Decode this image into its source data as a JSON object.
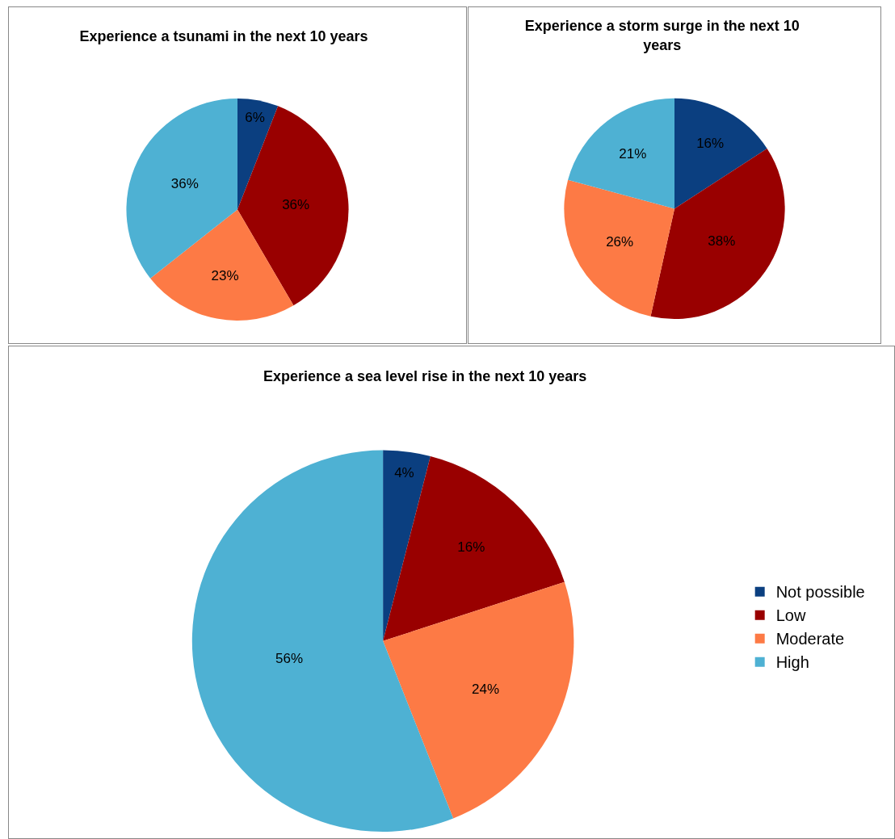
{
  "chart_data": [
    {
      "type": "pie",
      "title": "Experience a tsunami in the next 10 years",
      "categories": [
        null,
        null,
        null,
        null
      ],
      "values": [
        6,
        36,
        23,
        36
      ],
      "value_labels": [
        "6%",
        "36%",
        "23%",
        "36%"
      ],
      "colors": [
        "#0b3f80",
        "#990000",
        "#fd7a45",
        "#4eb1d3"
      ],
      "legend": false
    },
    {
      "type": "pie",
      "title": "Experience a storm surge in the next 10 years",
      "categories": [
        null,
        null,
        null,
        null
      ],
      "values": [
        16,
        38,
        26,
        21
      ],
      "value_labels": [
        "16%",
        "38%",
        "26%",
        "21%"
      ],
      "colors": [
        "#0b3f80",
        "#990000",
        "#fd7a45",
        "#4eb1d3"
      ],
      "legend": false
    },
    {
      "type": "pie",
      "title": "Experience a sea level rise in the next 10 years",
      "categories": [
        "Not possible",
        "Low",
        "Moderate",
        "High"
      ],
      "values": [
        4,
        16,
        24,
        56
      ],
      "value_labels": [
        "4%",
        "16%",
        "24%",
        "56%"
      ],
      "colors": [
        "#0b3f80",
        "#990000",
        "#fd7a45",
        "#4eb1d3"
      ],
      "legend": "right"
    }
  ]
}
